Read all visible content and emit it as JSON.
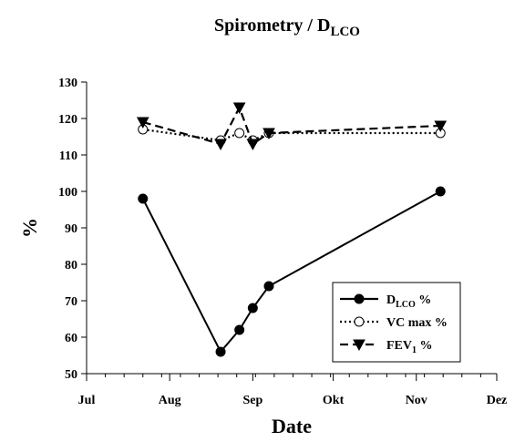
{
  "chart_data": {
    "type": "line",
    "title": "Spirometry / D",
    "title_subscript": "LCO",
    "xlabel": "Date",
    "ylabel": "%",
    "ylim": [
      50,
      130
    ],
    "yticks": [
      50,
      60,
      70,
      80,
      90,
      100,
      110,
      120,
      130
    ],
    "x_axis": {
      "type": "date",
      "range": [
        "2000-07-01",
        "2000-12-01"
      ],
      "ticks": [
        {
          "label": "Jul",
          "date": "2000-07-01"
        },
        {
          "label": "Aug",
          "date": "2000-08-01"
        },
        {
          "label": "Sep",
          "date": "2000-09-01"
        },
        {
          "label": "Okt",
          "date": "2000-10-01"
        },
        {
          "label": "Nov",
          "date": "2000-11-01"
        },
        {
          "label": "Dez",
          "date": "2000-12-01"
        }
      ],
      "minor_ticks": "weekly"
    },
    "grid": false,
    "legend": "bottom-right",
    "series": [
      {
        "name": "D",
        "name_subscript": "LCO",
        "name_suffix": " %",
        "line": "solid",
        "marker": "filled-circle",
        "color": "#000000",
        "points": [
          {
            "x": "2000-07-22",
            "y": 98
          },
          {
            "x": "2000-08-20",
            "y": 56
          },
          {
            "x": "2000-08-27",
            "y": 62
          },
          {
            "x": "2000-09-01",
            "y": 68
          },
          {
            "x": "2000-09-07",
            "y": 74
          },
          {
            "x": "2000-11-10",
            "y": 100
          }
        ]
      },
      {
        "name": "VC max",
        "name_subscript": "",
        "name_suffix": " %",
        "line": "dotted",
        "marker": "open-circle",
        "color": "#000000",
        "points": [
          {
            "x": "2000-07-22",
            "y": 117
          },
          {
            "x": "2000-08-20",
            "y": 114
          },
          {
            "x": "2000-08-27",
            "y": 116
          },
          {
            "x": "2000-09-01",
            "y": 114
          },
          {
            "x": "2000-09-07",
            "y": 116
          },
          {
            "x": "2000-11-10",
            "y": 116
          }
        ]
      },
      {
        "name": "FEV",
        "name_subscript": "1",
        "name_suffix": " %",
        "line": "dashed",
        "marker": "filled-triangle-down",
        "color": "#000000",
        "points": [
          {
            "x": "2000-07-22",
            "y": 119
          },
          {
            "x": "2000-08-20",
            "y": 113
          },
          {
            "x": "2000-08-27",
            "y": 123
          },
          {
            "x": "2000-09-01",
            "y": 113
          },
          {
            "x": "2000-09-07",
            "y": 116
          },
          {
            "x": "2000-11-10",
            "y": 118
          }
        ]
      }
    ]
  }
}
